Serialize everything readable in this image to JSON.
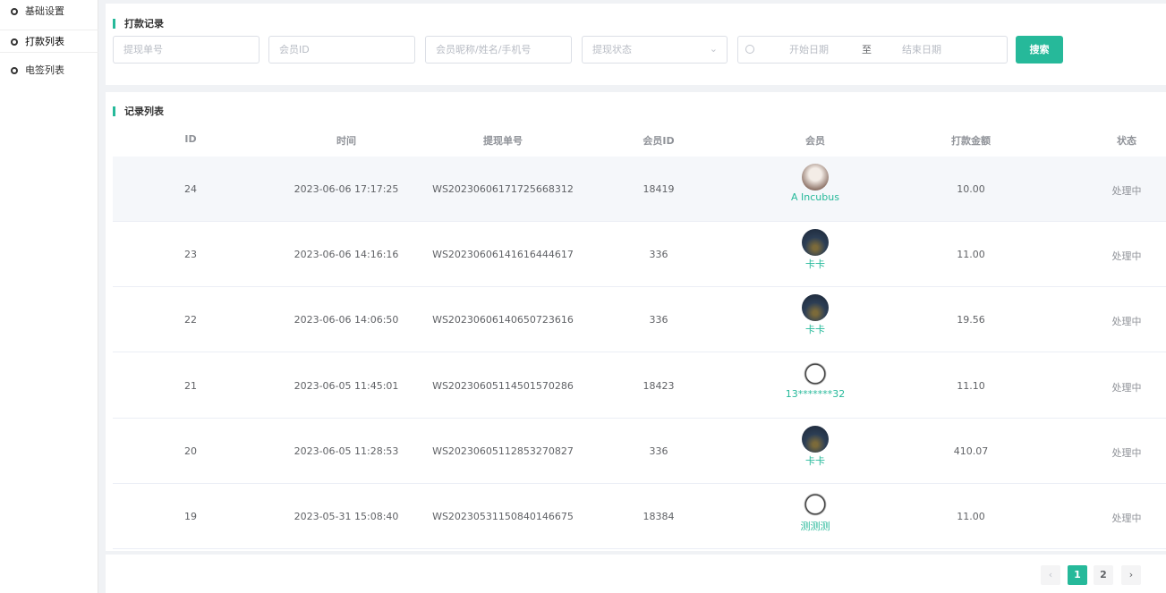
{
  "sidebar": {
    "items": [
      "基础设置",
      "打款列表",
      "电签列表"
    ]
  },
  "filter": {
    "title": "打款记录",
    "order_no": "提现单号",
    "member_id": "会员ID",
    "member": "会员昵称/姓名/手机号",
    "status": "提现状态",
    "start_date": "开始日期",
    "separator": "至",
    "end_date": "结束日期",
    "search_button": "搜索"
  },
  "records": {
    "title": "记录列表",
    "columns": [
      "ID",
      "时间",
      "提现单号",
      "会员ID",
      "会员",
      "打款金额",
      "状态"
    ],
    "rows": [
      [
        "24",
        "2023-06-06 17:17:25",
        "WS20230606171725668312",
        "18419",
        "A Incubus",
        "10.00",
        "处理中"
      ],
      [
        "23",
        "2023-06-06 14:16:16",
        "WS20230606141616444617",
        "336",
        "卡卡",
        "11.00",
        "处理中"
      ],
      [
        "22",
        "2023-06-06 14:06:50",
        "WS20230606140650723616",
        "336",
        "卡卡",
        "19.56",
        "处理中"
      ],
      [
        "21",
        "2023-06-05 11:45:01",
        "WS20230605114501570286",
        "18423",
        "13*******32",
        "11.10",
        "处理中"
      ],
      [
        "20",
        "2023-06-05 11:28:53",
        "WS20230605112853270827",
        "336",
        "卡卡",
        "410.07",
        "处理中"
      ],
      [
        "19",
        "2023-05-31 15:08:40",
        "WS20230531150840146675",
        "18384",
        "测测测",
        "11.00",
        "处理中"
      ]
    ]
  },
  "pagination": {
    "pages": [
      "1",
      "2"
    ]
  }
}
